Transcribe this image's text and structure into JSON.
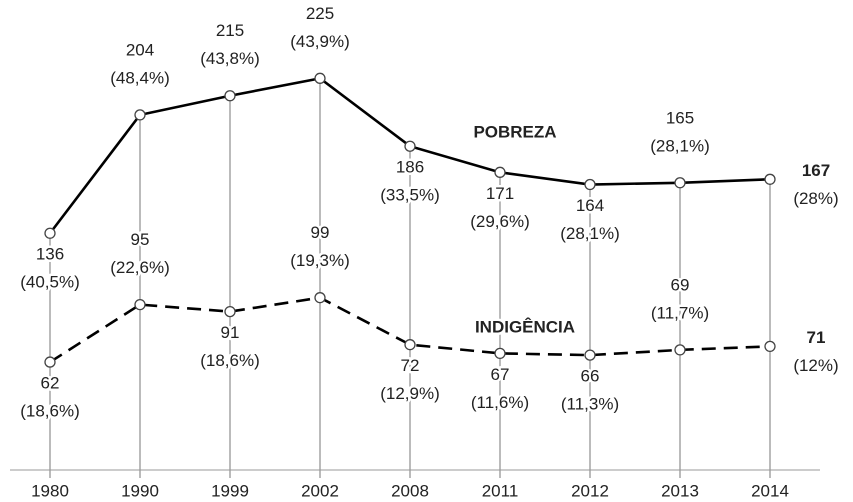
{
  "chart_data": {
    "type": "line",
    "categories": [
      "1980",
      "1990",
      "1999",
      "2002",
      "2008",
      "2011",
      "2012",
      "2013",
      "2014"
    ],
    "series": [
      {
        "name": "POBREZA",
        "color": "#000000",
        "dash": false,
        "values": [
          136,
          204,
          215,
          225,
          186,
          171,
          164,
          165,
          167
        ],
        "share_labels": [
          "(40,5%)",
          "(48,4%)",
          "(43,8%)",
          "(43,9%)",
          "(33,5%)",
          "(29,6%)",
          "(28,1%)",
          "(28,1%)",
          "(28%)"
        ]
      },
      {
        "name": "INDIGÊNCIA",
        "color": "#000000",
        "dash": true,
        "values": [
          62,
          95,
          91,
          99,
          72,
          67,
          66,
          69,
          71
        ],
        "share_labels": [
          "(18,6%)",
          "(22,6%)",
          "(18,6%)",
          "(19,3%)",
          "(12,9%)",
          "(11,6%)",
          "(11,3%)",
          "(11,7%)",
          "(12%)"
        ]
      }
    ],
    "ylim": [
      0,
      270
    ]
  }
}
